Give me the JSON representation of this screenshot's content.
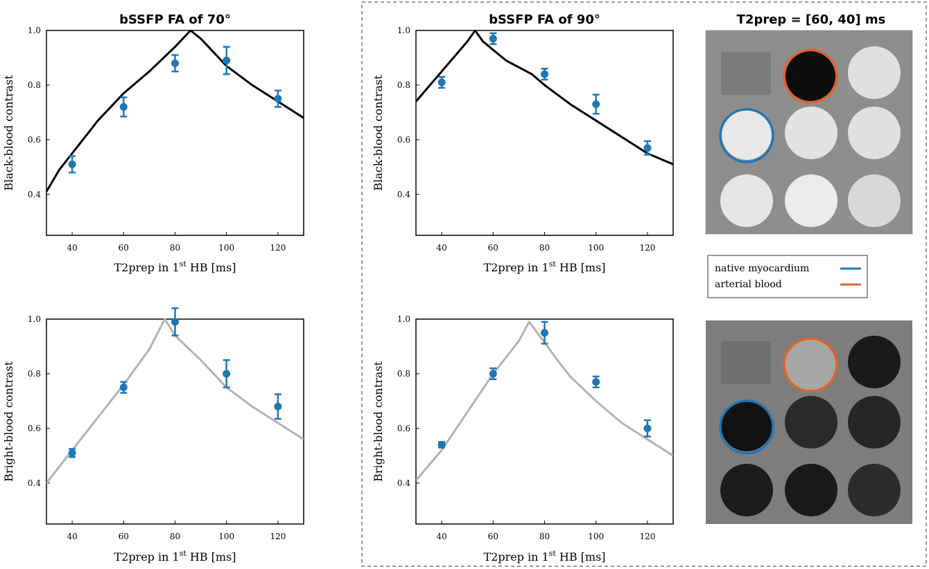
{
  "colors": {
    "points": "#1f77b4",
    "black_curve": "#000000",
    "bright_curve": "#b3b3b3",
    "myocardium": "#1f77b4",
    "arterial": "#e0642a",
    "box_border": "#777777"
  },
  "axis_text": {
    "xlabel_main": "T2prep in 1",
    "xlabel_sup": "st",
    "xlabel_tail": " HB [ms]"
  },
  "legend": {
    "myocardium": "native myocardium",
    "arterial": "arterial blood"
  },
  "images": {
    "title": "T2prep = [60, 40] ms",
    "top": "black-blood phantom image",
    "bottom": "bright-blood phantom image"
  },
  "chart_data": [
    {
      "type": "scatter",
      "title": "bSSFP FA of 70°",
      "ylabel": "Black-blood contrast",
      "xlim": [
        30,
        130
      ],
      "ylim": [
        0.25,
        1.0
      ],
      "xticks": [
        40,
        60,
        80,
        100,
        120
      ],
      "yticks": [
        0.4,
        0.6,
        0.8,
        1.0
      ],
      "points": {
        "x": [
          40,
          60,
          80,
          100,
          120
        ],
        "y": [
          0.51,
          0.72,
          0.88,
          0.89,
          0.75
        ],
        "err": [
          0.03,
          0.035,
          0.03,
          0.05,
          0.03
        ]
      },
      "curve": {
        "x": [
          30,
          35,
          40,
          50,
          60,
          70,
          80,
          86,
          90,
          100,
          110,
          120,
          130
        ],
        "y": [
          0.41,
          0.49,
          0.55,
          0.67,
          0.77,
          0.85,
          0.94,
          1.0,
          0.97,
          0.87,
          0.8,
          0.74,
          0.68
        ]
      }
    },
    {
      "type": "scatter",
      "title": "bSSFP FA of 90°",
      "ylabel": "Black-blood contrast",
      "xlim": [
        30,
        130
      ],
      "ylim": [
        0.25,
        1.0
      ],
      "xticks": [
        40,
        60,
        80,
        100,
        120
      ],
      "yticks": [
        0.4,
        0.6,
        0.8,
        1.0
      ],
      "points": {
        "x": [
          40,
          60,
          80,
          100,
          120
        ],
        "y": [
          0.81,
          0.97,
          0.84,
          0.73,
          0.57
        ],
        "err": [
          0.02,
          0.02,
          0.02,
          0.035,
          0.025
        ]
      },
      "curve": {
        "x": [
          30,
          40,
          50,
          53,
          56,
          65,
          75,
          80,
          90,
          100,
          110,
          120,
          130
        ],
        "y": [
          0.74,
          0.85,
          0.96,
          1.0,
          0.96,
          0.89,
          0.84,
          0.8,
          0.73,
          0.67,
          0.61,
          0.55,
          0.51
        ]
      }
    },
    {
      "type": "scatter",
      "title": "",
      "ylabel": "Bright-blood contrast",
      "xlim": [
        30,
        130
      ],
      "ylim": [
        0.25,
        1.0
      ],
      "xticks": [
        40,
        60,
        80,
        100,
        120
      ],
      "yticks": [
        0.4,
        0.6,
        0.8,
        1.0
      ],
      "points": {
        "x": [
          40,
          60,
          80,
          100,
          120
        ],
        "y": [
          0.51,
          0.75,
          0.99,
          0.8,
          0.68
        ],
        "err": [
          0.015,
          0.02,
          0.05,
          0.05,
          0.045
        ]
      },
      "curve": {
        "x": [
          30,
          40,
          50,
          60,
          70,
          76,
          80,
          90,
          100,
          110,
          120,
          130
        ],
        "y": [
          0.4,
          0.52,
          0.64,
          0.76,
          0.89,
          1.0,
          0.94,
          0.85,
          0.75,
          0.68,
          0.62,
          0.56
        ]
      }
    },
    {
      "type": "scatter",
      "title": "",
      "ylabel": "Bright-blood contrast",
      "xlim": [
        30,
        130
      ],
      "ylim": [
        0.25,
        1.0
      ],
      "xticks": [
        40,
        60,
        80,
        100,
        120
      ],
      "yticks": [
        0.4,
        0.6,
        0.8,
        1.0
      ],
      "points": {
        "x": [
          40,
          60,
          80,
          100,
          120
        ],
        "y": [
          0.54,
          0.8,
          0.95,
          0.77,
          0.6
        ],
        "err": [
          0.01,
          0.02,
          0.04,
          0.02,
          0.03
        ]
      },
      "curve": {
        "x": [
          30,
          40,
          50,
          60,
          70,
          74,
          78,
          85,
          90,
          100,
          110,
          120,
          130
        ],
        "y": [
          0.41,
          0.52,
          0.66,
          0.8,
          0.92,
          0.99,
          0.94,
          0.85,
          0.79,
          0.7,
          0.62,
          0.56,
          0.5
        ]
      }
    }
  ]
}
